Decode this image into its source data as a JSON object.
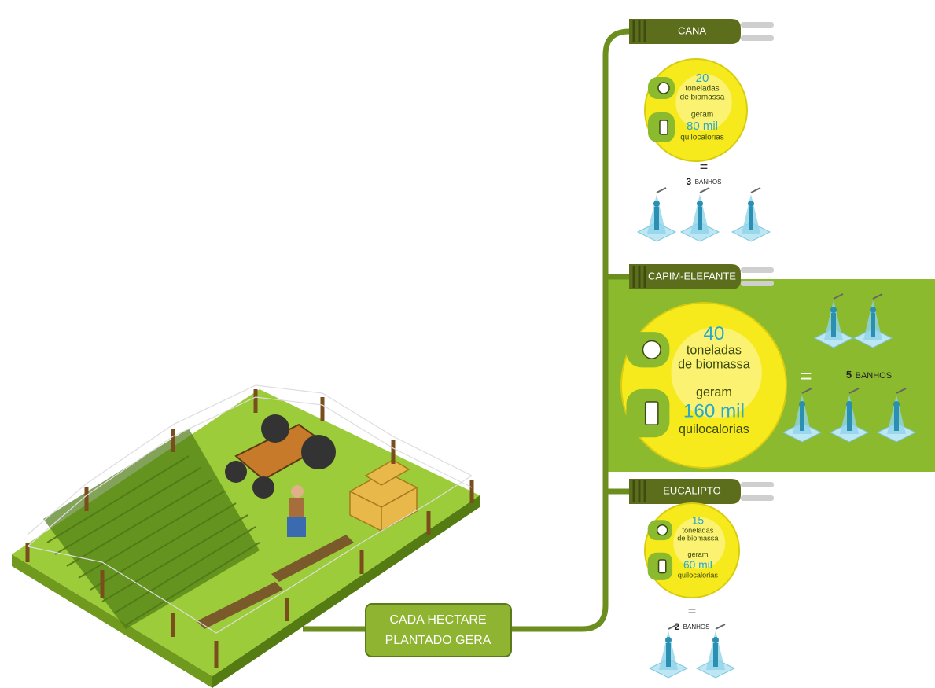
{
  "caption": [
    "CADA HECTARE",
    "PLANTADO GERA"
  ],
  "crops": [
    {
      "name": "CANA",
      "amount": "20",
      "amount_text": [
        "toneladas",
        "de biomassa"
      ],
      "verb": "geram",
      "energy": "80 mil",
      "energy_unit": "quilocalorias",
      "equals": "=",
      "baths": 3,
      "baths_label": "BANHOS"
    },
    {
      "name": "CAPIM-ELEFANTE",
      "amount": "40",
      "amount_text": [
        "toneladas",
        "de biomassa"
      ],
      "verb": "geram",
      "energy": "160 mil",
      "energy_unit": "quilocalorias",
      "equals": "=",
      "baths": 5,
      "baths_label": "BANHOS"
    },
    {
      "name": "EUCALIPTO",
      "amount": "15",
      "amount_text": [
        "toneladas",
        "de biomassa"
      ],
      "verb": "geram",
      "energy": "60 mil",
      "energy_unit": "quilocalorias",
      "equals": "=",
      "baths": 2,
      "baths_label": "BANHOS"
    }
  ]
}
